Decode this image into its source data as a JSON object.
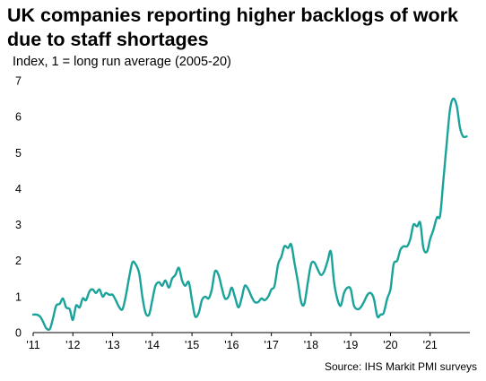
{
  "chart_data": {
    "type": "line",
    "title": "UK companies reporting higher backlogs of work due to staff shortages",
    "subtitle": "Index, 1 = long run average (2005-20)",
    "source": "Source: IHS Markit PMI surveys",
    "xlabel": "",
    "ylabel": "",
    "ylim": [
      0,
      7
    ],
    "yticks": [
      "0",
      "1",
      "2",
      "3",
      "4",
      "5",
      "6",
      "7"
    ],
    "xticks": [
      "'11",
      "'12",
      "'13",
      "'14",
      "'15",
      "'16",
      "'17",
      "'18",
      "'19",
      "'20",
      "'21"
    ],
    "grid": false,
    "line_color": "#1aa39a",
    "series": [
      {
        "name": "",
        "x": [
          2011.0,
          2011.08,
          2011.17,
          2011.25,
          2011.33,
          2011.42,
          2011.5,
          2011.58,
          2011.67,
          2011.75,
          2011.83,
          2011.92,
          2012.0,
          2012.08,
          2012.17,
          2012.25,
          2012.33,
          2012.42,
          2012.5,
          2012.58,
          2012.67,
          2012.75,
          2012.83,
          2012.92,
          2013.0,
          2013.08,
          2013.17,
          2013.25,
          2013.33,
          2013.42,
          2013.5,
          2013.58,
          2013.67,
          2013.75,
          2013.83,
          2013.92,
          2014.0,
          2014.08,
          2014.17,
          2014.25,
          2014.33,
          2014.42,
          2014.5,
          2014.58,
          2014.67,
          2014.75,
          2014.83,
          2014.92,
          2015.0,
          2015.08,
          2015.17,
          2015.25,
          2015.33,
          2015.42,
          2015.5,
          2015.58,
          2015.67,
          2015.75,
          2015.83,
          2015.92,
          2016.0,
          2016.08,
          2016.17,
          2016.25,
          2016.33,
          2016.42,
          2016.5,
          2016.58,
          2016.67,
          2016.75,
          2016.83,
          2016.92,
          2017.0,
          2017.08,
          2017.17,
          2017.25,
          2017.33,
          2017.42,
          2017.5,
          2017.58,
          2017.67,
          2017.75,
          2017.83,
          2017.92,
          2018.0,
          2018.08,
          2018.17,
          2018.25,
          2018.33,
          2018.42,
          2018.5,
          2018.58,
          2018.67,
          2018.75,
          2018.83,
          2018.92,
          2019.0,
          2019.08,
          2019.17,
          2019.25,
          2019.33,
          2019.42,
          2019.5,
          2019.58,
          2019.67,
          2019.75,
          2019.83,
          2019.92,
          2020.0,
          2020.08,
          2020.17,
          2020.25,
          2020.33,
          2020.42,
          2020.5,
          2020.58,
          2020.67,
          2020.75,
          2020.83,
          2020.92,
          2021.0,
          2021.08,
          2021.17,
          2021.25,
          2021.33,
          2021.42,
          2021.5,
          2021.58,
          2021.67,
          2021.75,
          2021.83,
          2021.92
        ],
        "values": [
          0.5,
          0.5,
          0.45,
          0.3,
          0.12,
          0.1,
          0.4,
          0.75,
          0.8,
          0.95,
          0.7,
          0.65,
          0.35,
          0.75,
          0.7,
          0.95,
          0.9,
          1.15,
          1.2,
          1.1,
          1.2,
          1.0,
          1.1,
          1.05,
          1.05,
          0.9,
          0.7,
          0.65,
          1.0,
          1.55,
          1.95,
          1.9,
          1.65,
          1.0,
          0.55,
          0.5,
          0.9,
          1.3,
          1.4,
          1.3,
          1.45,
          1.25,
          1.5,
          1.6,
          1.8,
          1.45,
          1.3,
          1.4,
          0.9,
          0.45,
          0.55,
          0.9,
          1.0,
          0.95,
          1.2,
          1.7,
          1.6,
          1.25,
          0.95,
          1.0,
          1.25,
          1.0,
          0.7,
          0.95,
          1.3,
          1.2,
          1.0,
          0.85,
          0.85,
          0.95,
          0.9,
          1.0,
          1.2,
          1.3,
          1.9,
          2.1,
          2.4,
          2.35,
          2.45,
          1.95,
          1.4,
          0.85,
          0.8,
          1.4,
          1.9,
          1.95,
          1.75,
          1.6,
          1.7,
          2.0,
          2.25,
          1.4,
          0.9,
          0.75,
          1.1,
          1.25,
          1.2,
          0.75,
          0.65,
          0.7,
          0.85,
          1.05,
          1.1,
          0.95,
          0.45,
          0.5,
          0.55,
          0.95,
          1.2,
          1.9,
          2.0,
          2.3,
          2.4,
          2.4,
          2.6,
          3.0,
          2.95,
          3.05,
          2.35,
          2.25,
          2.6,
          2.85,
          3.2,
          3.25,
          4.2,
          5.3,
          6.2,
          6.5,
          6.3,
          5.7,
          5.45,
          5.45
        ]
      }
    ]
  }
}
